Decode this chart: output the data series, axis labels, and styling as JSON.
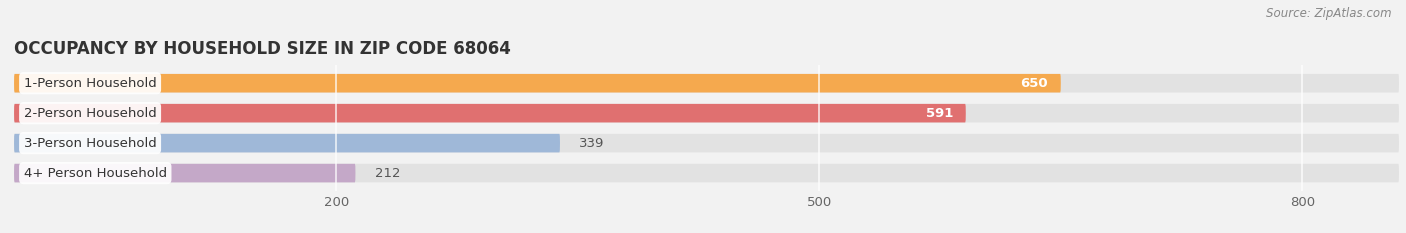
{
  "title": "OCCUPANCY BY HOUSEHOLD SIZE IN ZIP CODE 68064",
  "source": "Source: ZipAtlas.com",
  "categories": [
    "1-Person Household",
    "2-Person Household",
    "3-Person Household",
    "4+ Person Household"
  ],
  "values": [
    650,
    591,
    339,
    212
  ],
  "bar_colors": [
    "#F5A94E",
    "#E07070",
    "#9FB8D8",
    "#C4A8C8"
  ],
  "label_colors": [
    "white",
    "white",
    "#666666",
    "#666666"
  ],
  "background_color": "#f2f2f2",
  "bar_bg_color": "#e2e2e2",
  "xlim": [
    0,
    860
  ],
  "xticks": [
    200,
    500,
    800
  ],
  "bar_height": 0.62,
  "title_fontsize": 12,
  "label_fontsize": 9.5,
  "tick_fontsize": 9.5,
  "value_fontsize": 9.5,
  "fig_width": 14.06,
  "fig_height": 2.33,
  "dpi": 100
}
